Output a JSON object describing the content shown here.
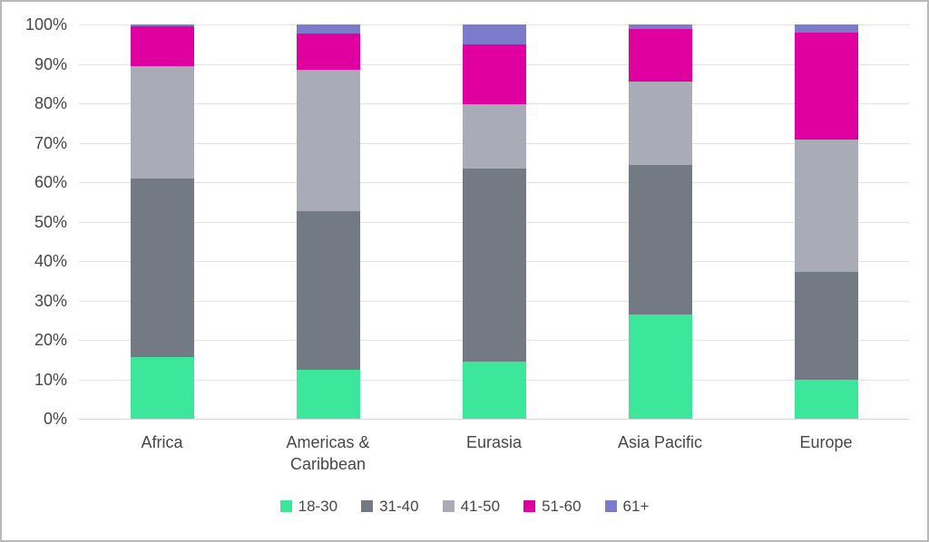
{
  "chart_data": {
    "type": "bar",
    "variant": "stacked-100-percent",
    "title": "",
    "xlabel": "",
    "ylabel": "",
    "ylim": [
      0,
      100
    ],
    "ytick_values": [
      0,
      10,
      20,
      30,
      40,
      50,
      60,
      70,
      80,
      90,
      100
    ],
    "ytick_labels": [
      "0%",
      "10%",
      "20%",
      "30%",
      "40%",
      "50%",
      "60%",
      "70%",
      "80%",
      "90%",
      "100%"
    ],
    "grid": true,
    "legend_position": "bottom",
    "categories": [
      "Africa",
      "Americas & Caribbean",
      "Eurasia",
      "Asia Pacific",
      "Europe"
    ],
    "series": [
      {
        "name": "18-30",
        "color": "#3ce69b",
        "values": [
          15.7,
          12.5,
          14.5,
          26.4,
          10.0
        ]
      },
      {
        "name": "31-40",
        "color": "#747a84",
        "values": [
          45.2,
          40.2,
          49.0,
          37.9,
          27.2
        ]
      },
      {
        "name": "41-50",
        "color": "#a9acb7",
        "values": [
          28.5,
          35.7,
          16.3,
          21.3,
          33.6
        ]
      },
      {
        "name": "51-60",
        "color": "#e000a0",
        "values": [
          10.1,
          9.4,
          15.2,
          13.2,
          27.2
        ]
      },
      {
        "name": "61+",
        "color": "#7c7acb",
        "values": [
          0.5,
          2.2,
          5.0,
          1.2,
          2.0
        ]
      }
    ]
  },
  "colors": {
    "background": "#ffffff",
    "frame_border": "#b9b9b9",
    "gridline": "#e2e2e2",
    "axis_line": "#d6d6d6",
    "label_text": "#474747"
  }
}
